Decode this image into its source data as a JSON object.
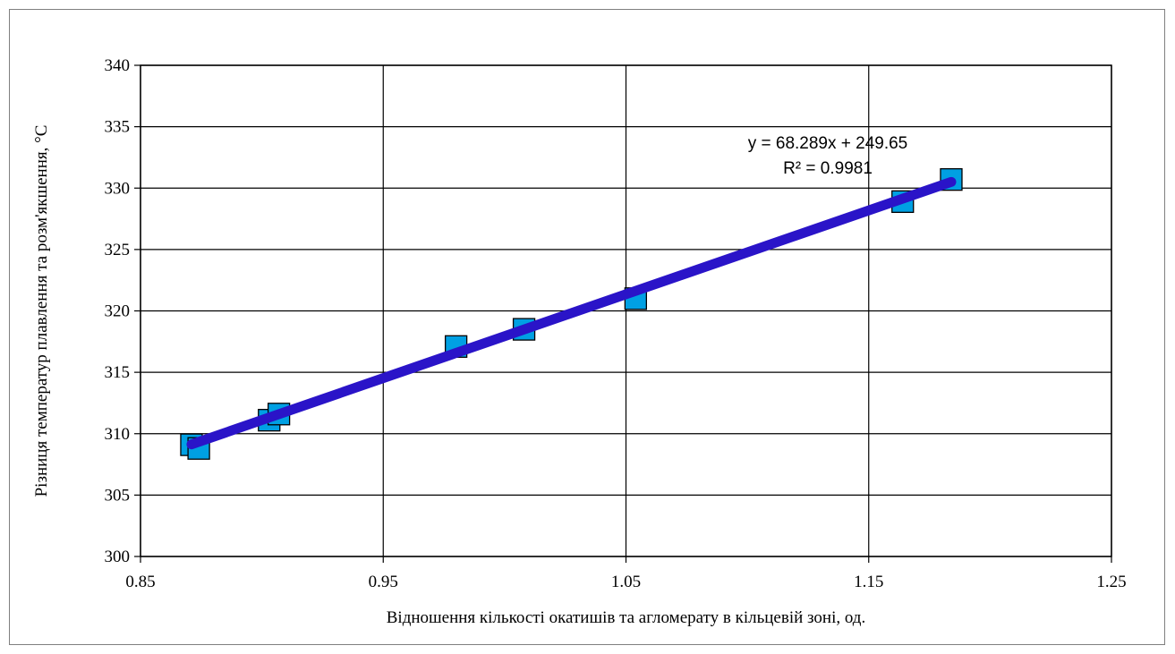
{
  "chart_data": {
    "type": "scatter",
    "title": "",
    "xlabel": "Відношення кількості окатишів та агломерату в кільцевій зоні, од.",
    "ylabel": "Різниця температур плавлення та розм'якшення, °С",
    "xlim": [
      0.85,
      1.25
    ],
    "ylim": [
      300,
      340
    ],
    "x_ticks": [
      0.85,
      0.95,
      1.05,
      1.15,
      1.25
    ],
    "x_tick_labels": [
      "0.85",
      "0.95",
      "1.05",
      "1.15",
      "1.25"
    ],
    "y_ticks": [
      300,
      305,
      310,
      315,
      320,
      325,
      330,
      335,
      340
    ],
    "y_tick_labels": [
      "300",
      "305",
      "310",
      "315",
      "320",
      "325",
      "330",
      "335",
      "340"
    ],
    "grid": true,
    "legend": "none",
    "series": [
      {
        "marker": "square",
        "color": "#00a0e3",
        "x": [
          0.871,
          0.874,
          0.903,
          0.907,
          0.98,
          1.008,
          1.054,
          1.164,
          1.184
        ],
        "y": [
          309.1,
          308.8,
          311.1,
          311.6,
          317.1,
          318.5,
          321.0,
          328.9,
          330.7
        ]
      }
    ],
    "trendline": {
      "type": "linear",
      "slope": 68.289,
      "intercept": 249.65,
      "x_range": [
        0.871,
        1.184
      ],
      "color": "#2a14c8",
      "equation_label": "y = 68.289x + 249.65",
      "r2_label": "R² = 0.9981"
    }
  }
}
